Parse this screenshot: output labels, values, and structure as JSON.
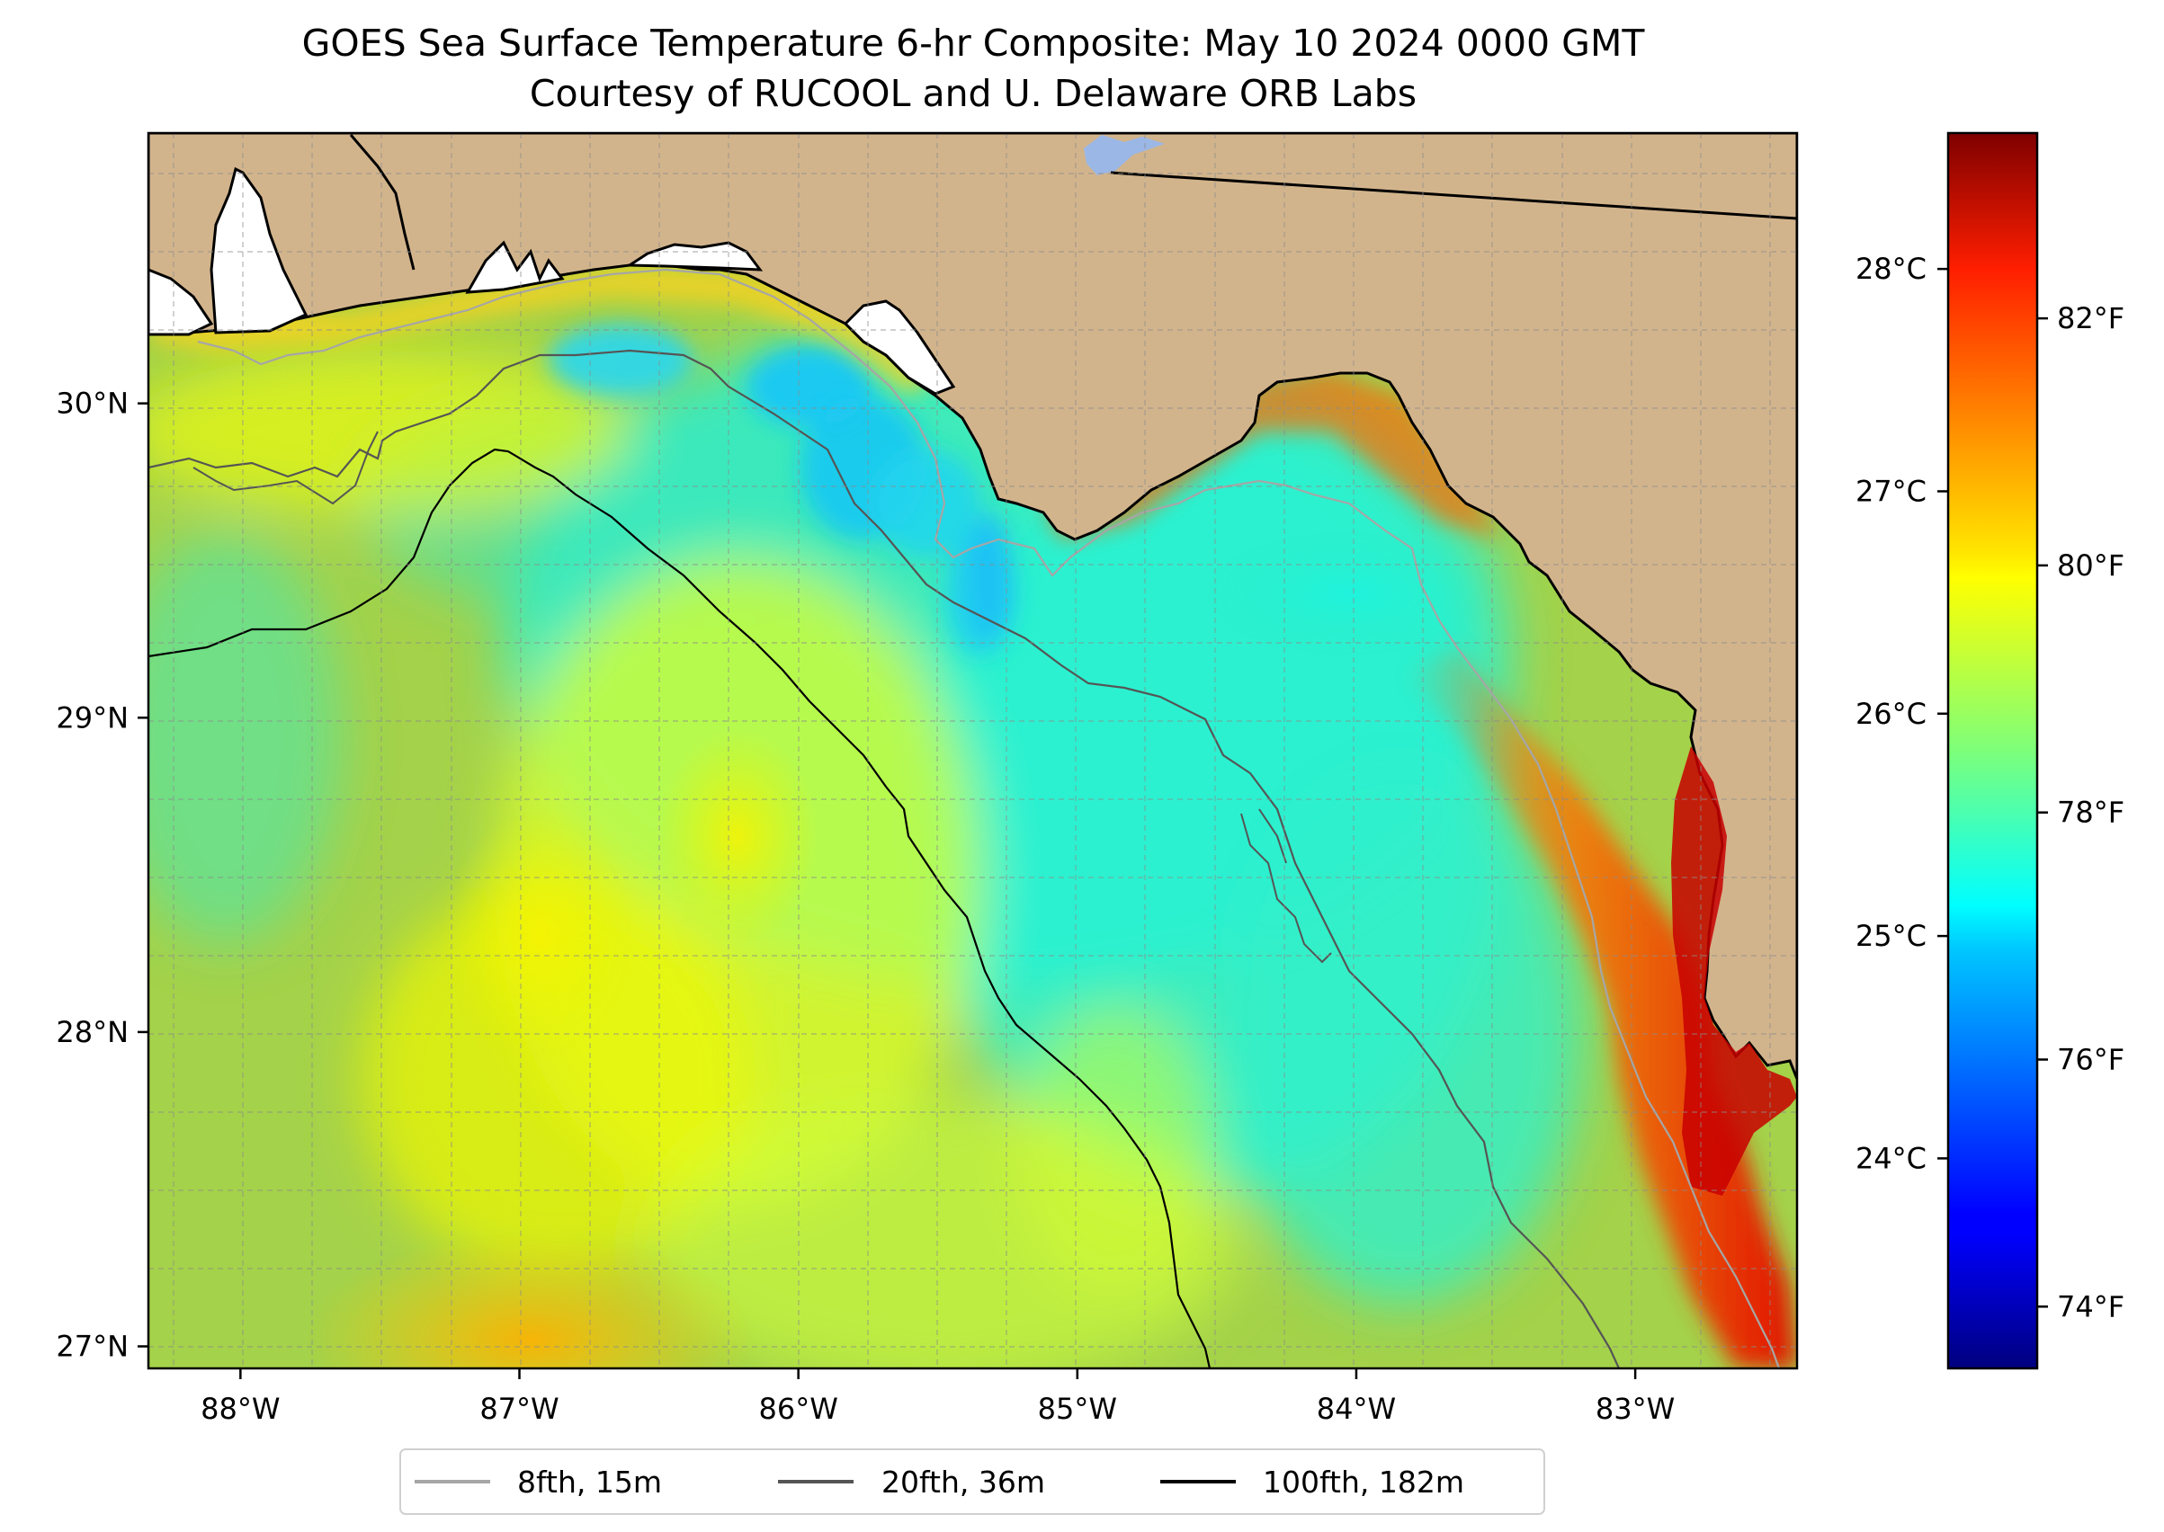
{
  "title": {
    "line1": "GOES Sea Surface Temperature 6-hr Composite: May 10 2024 0000 GMT",
    "line2": "Courtesy of RUCOOL and U. Delaware ORB Labs"
  },
  "map": {
    "lon_range": [
      -88.33,
      -82.42
    ],
    "lat_range": [
      26.93,
      30.86
    ],
    "lon_ticks": [
      {
        "value": -88,
        "label": "88°W"
      },
      {
        "value": -87,
        "label": "87°W"
      },
      {
        "value": -86,
        "label": "86°W"
      },
      {
        "value": -85,
        "label": "85°W"
      },
      {
        "value": -84,
        "label": "84°W"
      },
      {
        "value": -83,
        "label": "83°W"
      }
    ],
    "lat_ticks": [
      {
        "value": 27,
        "label": "27°N"
      },
      {
        "value": 28,
        "label": "28°N"
      },
      {
        "value": 29,
        "label": "29°N"
      },
      {
        "value": 30,
        "label": "30°N"
      }
    ],
    "gridlines": "dashed, every 0.25 degree",
    "colors": {
      "land": "#d2b48c",
      "gulf_water": "#9fcf4c",
      "lake": "#9bb7e6",
      "contour_8fth": "#a6a6a6",
      "contour_20fth": "#555555",
      "contour_100fth": "#000000"
    }
  },
  "colorbar": {
    "colormap": "jet",
    "range_fahrenheit": [
      73.5,
      83.5
    ],
    "celsius_ticks": [
      {
        "value": 24,
        "label": "24°C"
      },
      {
        "value": 25,
        "label": "25°C"
      },
      {
        "value": 26,
        "label": "26°C"
      },
      {
        "value": 27,
        "label": "27°C"
      },
      {
        "value": 28,
        "label": "28°C"
      }
    ],
    "fahrenheit_ticks": [
      {
        "value": 74,
        "label": "74°F"
      },
      {
        "value": 76,
        "label": "76°F"
      },
      {
        "value": 78,
        "label": "78°F"
      },
      {
        "value": 80,
        "label": "80°F"
      },
      {
        "value": 82,
        "label": "82°F"
      }
    ]
  },
  "legend": {
    "placement": "bottom-center",
    "items": [
      {
        "label": "8fth, 15m",
        "color": "#a6a6a6"
      },
      {
        "label": "20fth, 36m",
        "color": "#555555"
      },
      {
        "label": "100fth, 182m",
        "color": "#000000"
      }
    ]
  }
}
